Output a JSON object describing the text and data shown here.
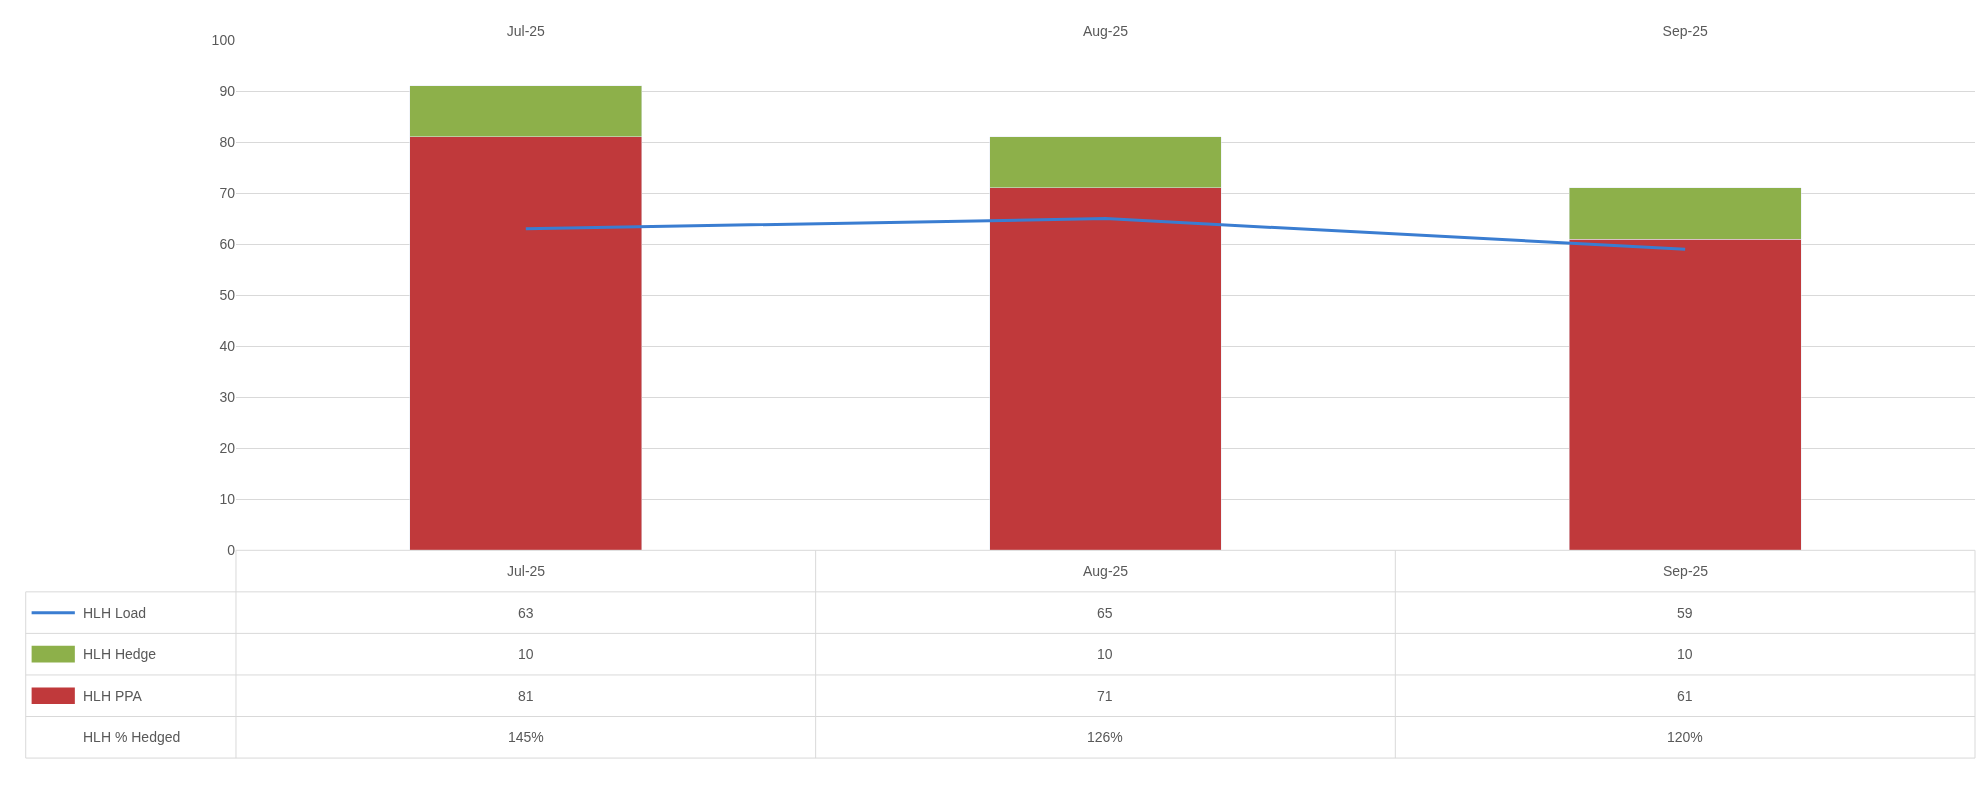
{
  "chart_data": {
    "type": "bar",
    "stacked": true,
    "categories": [
      "Jul-25",
      "Aug-25",
      "Sep-25"
    ],
    "series": [
      {
        "name": "HLH PPA",
        "color": "#c0393b",
        "values": [
          81,
          71,
          61
        ]
      },
      {
        "name": "HLH Hedge",
        "color": "#8db04a",
        "values": [
          10,
          10,
          10
        ]
      },
      {
        "name": "HLH Load",
        "type": "line",
        "color": "#3a7dd1",
        "values": [
          63,
          65,
          59
        ],
        "marker": "none",
        "line_style": "solid"
      }
    ],
    "ylim": [
      0,
      100
    ],
    "yticks": [
      0,
      10,
      20,
      30,
      40,
      50,
      60,
      70,
      80,
      90,
      100
    ],
    "grid": "y",
    "legend": "bottom",
    "data_labels": true,
    "annotations": [
      "HLH % Hedged",
      "145%",
      "126%",
      "120%"
    ]
  }
}
